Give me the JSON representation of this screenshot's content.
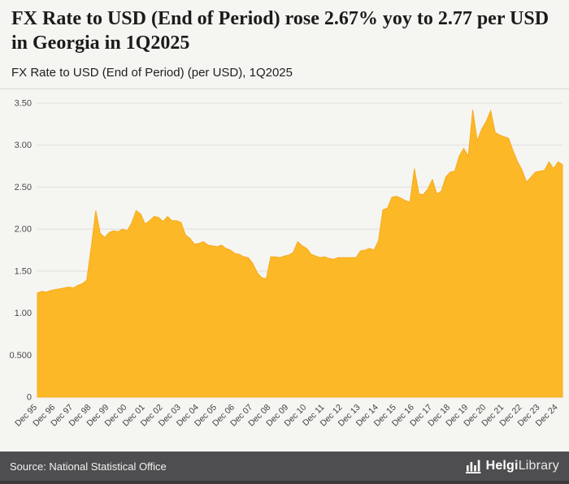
{
  "header": {
    "title": "FX Rate to USD (End of Period) rose 2.67% yoy to 2.77 per USD in Georgia in 1Q2025",
    "subtitle": "FX Rate to USD (End of Period) (per USD), 1Q2025"
  },
  "footer": {
    "source": "Source: National Statistical Office",
    "logo_bold": "Helgi",
    "logo_regular": "Library",
    "logo_icon": "bar-columns-icon"
  },
  "colors": {
    "area_fill": "#FCB827",
    "area_stroke": "#F6AB1C",
    "background": "#F5F5F2",
    "footer_bg": "#4E4E50",
    "grid": "#DEDEDA",
    "axis_text": "#4A4A4A"
  },
  "chart_data": {
    "type": "area",
    "title": "FX Rate to USD (End of Period) (per USD), 1Q2025",
    "xlabel": "",
    "ylabel": "",
    "ylim": [
      0,
      3.5
    ],
    "grid": "horizontal",
    "legend": "none",
    "x_tick_rotation": -45,
    "x_frequency": "quarterly",
    "x_start": "Dec 95",
    "x_end": "Mar 25",
    "yticks": [
      {
        "v": 0,
        "label": "0"
      },
      {
        "v": 0.5,
        "label": "0.500"
      },
      {
        "v": 1,
        "label": "1.00"
      },
      {
        "v": 1.5,
        "label": "1.50"
      },
      {
        "v": 2,
        "label": "2.00"
      },
      {
        "v": 2.5,
        "label": "2.50"
      },
      {
        "v": 3,
        "label": "3.00"
      },
      {
        "v": 3.5,
        "label": "3.50"
      }
    ],
    "x_tick_every": 4,
    "x_tick_labels": [
      "Dec 95",
      "Dec 96",
      "Dec 97",
      "Dec 98",
      "Dec 99",
      "Dec 00",
      "Dec 01",
      "Dec 02",
      "Dec 03",
      "Dec 04",
      "Dec 05",
      "Dec 06",
      "Dec 07",
      "Dec 08",
      "Dec 09",
      "Dec 10",
      "Dec 11",
      "Dec 12",
      "Dec 13",
      "Dec 14",
      "Dec 15",
      "Dec 16",
      "Dec 17",
      "Dec 18",
      "Dec 19",
      "Dec 20",
      "Dec 21",
      "Dec 22",
      "Dec 23",
      "Dec 24"
    ],
    "values": [
      1.24,
      1.26,
      1.25,
      1.27,
      1.28,
      1.29,
      1.3,
      1.31,
      1.3,
      1.33,
      1.35,
      1.39,
      1.79,
      2.22,
      1.95,
      1.9,
      1.96,
      1.98,
      1.97,
      2.0,
      1.98,
      2.07,
      2.22,
      2.18,
      2.06,
      2.1,
      2.15,
      2.14,
      2.09,
      2.15,
      2.1,
      2.1,
      2.08,
      1.93,
      1.89,
      1.82,
      1.83,
      1.85,
      1.81,
      1.8,
      1.79,
      1.81,
      1.77,
      1.75,
      1.71,
      1.7,
      1.67,
      1.66,
      1.59,
      1.48,
      1.42,
      1.41,
      1.67,
      1.67,
      1.66,
      1.68,
      1.69,
      1.72,
      1.85,
      1.8,
      1.77,
      1.7,
      1.68,
      1.66,
      1.67,
      1.65,
      1.64,
      1.66,
      1.66,
      1.66,
      1.66,
      1.66,
      1.74,
      1.75,
      1.77,
      1.75,
      1.86,
      2.23,
      2.25,
      2.38,
      2.39,
      2.37,
      2.34,
      2.32,
      2.72,
      2.42,
      2.41,
      2.48,
      2.59,
      2.42,
      2.45,
      2.62,
      2.68,
      2.69,
      2.87,
      2.96,
      2.87,
      3.42,
      3.05,
      3.19,
      3.28,
      3.41,
      3.15,
      3.12,
      3.1,
      3.08,
      2.93,
      2.8,
      2.7,
      2.56,
      2.62,
      2.68,
      2.69,
      2.7,
      2.8,
      2.72,
      2.8,
      2.77
    ]
  }
}
